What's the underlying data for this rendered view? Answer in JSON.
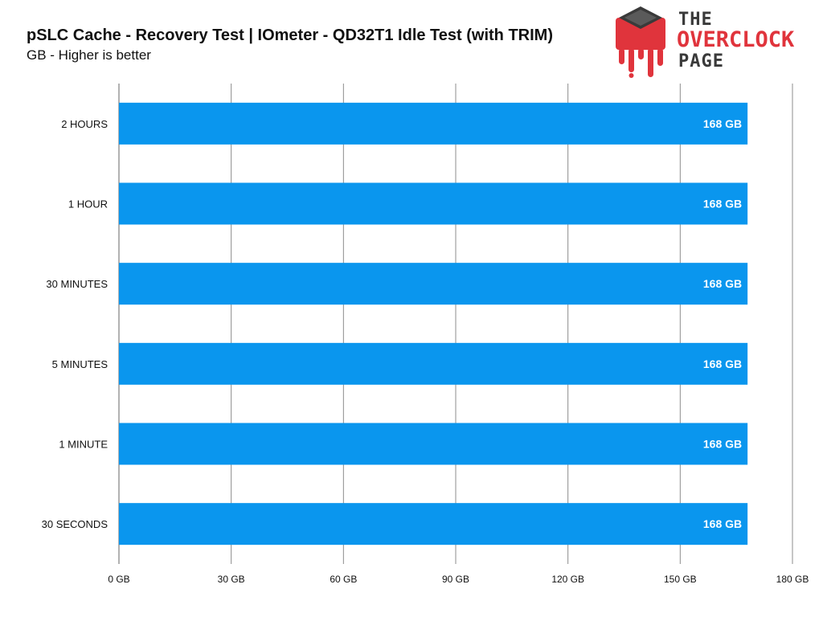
{
  "header": {
    "title": "pSLC Cache - Recovery Test | IOmeter - QD32T1 Idle Test (with TRIM)",
    "subtitle": "GB - Higher is better"
  },
  "logo": {
    "line1": "THE",
    "line2": "OVERCLOCK",
    "line3": "PAGE",
    "colors": {
      "red": "#e0343c",
      "dark": "#3a3a3a"
    }
  },
  "chart_data": {
    "type": "bar",
    "orientation": "horizontal",
    "categories": [
      "2 HOURS",
      "1 HOUR",
      "30 MINUTES",
      "5 MINUTES",
      "1 MINUTE",
      "30 SECONDS"
    ],
    "values": [
      168,
      168,
      168,
      168,
      168,
      168
    ],
    "data_labels": [
      "168 GB",
      "168 GB",
      "168 GB",
      "168 GB",
      "168 GB",
      "168 GB"
    ],
    "xlim": [
      0,
      180
    ],
    "xticks": [
      0,
      30,
      60,
      90,
      120,
      150,
      180
    ],
    "xtick_labels": [
      "0 GB",
      "30 GB",
      "60 GB",
      "90 GB",
      "120 GB",
      "150 GB",
      "180 GB"
    ],
    "grid": true,
    "bar_color": "#0a96ee",
    "xlabel": "",
    "ylabel": ""
  }
}
